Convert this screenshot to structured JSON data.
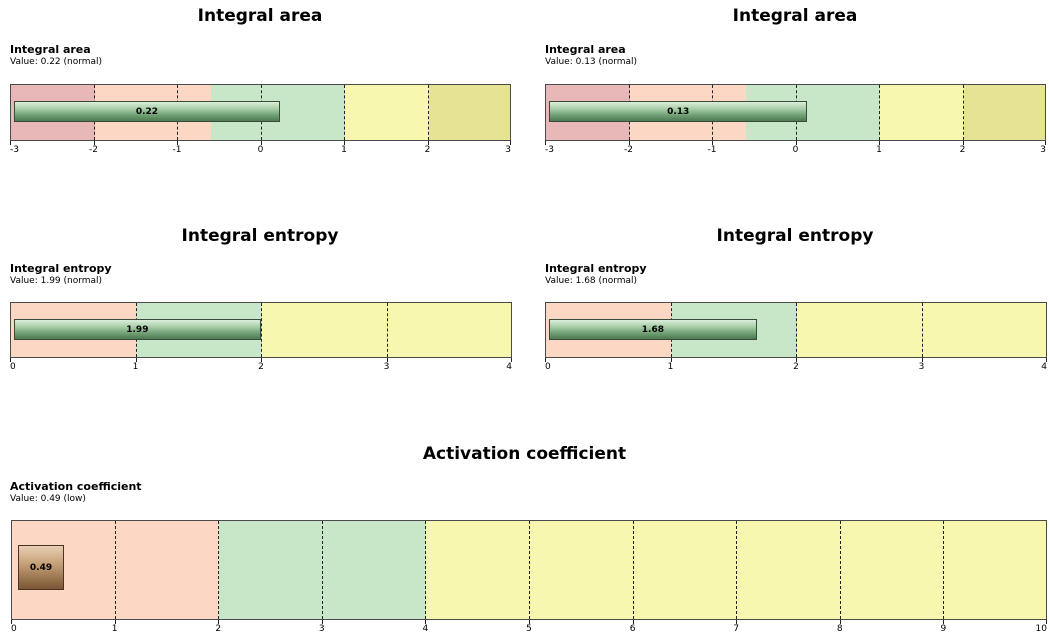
{
  "colors": {
    "zone_red": "#e8b8b8",
    "zone_orange": "#fcd8c4",
    "zone_green": "#c8e6c8",
    "zone_yellow": "#f8f7b0",
    "zone_olive": "#e6e394"
  },
  "gauges": [
    {
      "title": "Integral area",
      "label": "Integral area",
      "subtitle": "Value: 0.22 (normal)",
      "value": 0.22,
      "value_text": "0.22",
      "min": -3,
      "max": 3,
      "ticks": [
        "-3",
        "-2",
        "-1",
        "0",
        "1",
        "2",
        "3"
      ],
      "grid": [
        -2,
        -1,
        0,
        1,
        2
      ],
      "style": "green",
      "zones": [
        {
          "from": -3,
          "to": -2,
          "color": "zone_red"
        },
        {
          "from": -2,
          "to": -0.6,
          "color": "zone_orange"
        },
        {
          "from": -0.6,
          "to": 1,
          "color": "zone_green"
        },
        {
          "from": 1,
          "to": 2,
          "color": "zone_yellow"
        },
        {
          "from": 2,
          "to": 3,
          "color": "zone_olive"
        }
      ]
    },
    {
      "title": "Integral area",
      "label": "Integral area",
      "subtitle": "Value: 0.13 (normal)",
      "value": 0.13,
      "value_text": "0.13",
      "min": -3,
      "max": 3,
      "ticks": [
        "-3",
        "-2",
        "-1",
        "0",
        "1",
        "2",
        "3"
      ],
      "grid": [
        -2,
        -1,
        0,
        1,
        2
      ],
      "style": "green",
      "zones": [
        {
          "from": -3,
          "to": -2,
          "color": "zone_red"
        },
        {
          "from": -2,
          "to": -0.6,
          "color": "zone_orange"
        },
        {
          "from": -0.6,
          "to": 1,
          "color": "zone_green"
        },
        {
          "from": 1,
          "to": 2,
          "color": "zone_yellow"
        },
        {
          "from": 2,
          "to": 3,
          "color": "zone_olive"
        }
      ]
    },
    {
      "title": "Integral entropy",
      "label": "Integral entropy",
      "subtitle": "Value: 1.99 (normal)",
      "value": 1.99,
      "value_text": "1.99",
      "min": 0,
      "max": 4,
      "ticks": [
        "0",
        "1",
        "2",
        "3",
        "4"
      ],
      "grid": [
        1,
        2,
        3
      ],
      "style": "green",
      "zones": [
        {
          "from": 0,
          "to": 1,
          "color": "zone_orange"
        },
        {
          "from": 1,
          "to": 2,
          "color": "zone_green"
        },
        {
          "from": 2,
          "to": 4,
          "color": "zone_yellow"
        }
      ]
    },
    {
      "title": "Integral entropy",
      "label": "Integral entropy",
      "subtitle": "Value: 1.68 (normal)",
      "value": 1.68,
      "value_text": "1.68",
      "min": 0,
      "max": 4,
      "ticks": [
        "0",
        "1",
        "2",
        "3",
        "4"
      ],
      "grid": [
        1,
        2,
        3
      ],
      "style": "green",
      "zones": [
        {
          "from": 0,
          "to": 1,
          "color": "zone_orange"
        },
        {
          "from": 1,
          "to": 2,
          "color": "zone_green"
        },
        {
          "from": 2,
          "to": 4,
          "color": "zone_yellow"
        }
      ]
    },
    {
      "title": "Activation coefficient",
      "label": "Activation coefficient",
      "subtitle": "Value: 0.49 (low)",
      "value": 0.49,
      "value_text": "0.49",
      "min": 0,
      "max": 10,
      "ticks": [
        "0",
        "1",
        "2",
        "3",
        "4",
        "5",
        "6",
        "7",
        "8",
        "9",
        "10"
      ],
      "grid": [
        1,
        2,
        3,
        4,
        5,
        6,
        7,
        8,
        9
      ],
      "style": "brown",
      "zones": [
        {
          "from": 0,
          "to": 2,
          "color": "zone_orange"
        },
        {
          "from": 2,
          "to": 4,
          "color": "zone_green"
        },
        {
          "from": 4,
          "to": 10,
          "color": "zone_yellow"
        }
      ]
    }
  ],
  "chart_data": [
    {
      "type": "bar",
      "title": "Integral area",
      "categories": [
        "Integral area"
      ],
      "values": [
        0.22
      ],
      "xlim": [
        -3,
        3
      ]
    },
    {
      "type": "bar",
      "title": "Integral area",
      "categories": [
        "Integral area"
      ],
      "values": [
        0.13
      ],
      "xlim": [
        -3,
        3
      ]
    },
    {
      "type": "bar",
      "title": "Integral entropy",
      "categories": [
        "Integral entropy"
      ],
      "values": [
        1.99
      ],
      "xlim": [
        0,
        4
      ]
    },
    {
      "type": "bar",
      "title": "Integral entropy",
      "categories": [
        "Integral entropy"
      ],
      "values": [
        1.68
      ],
      "xlim": [
        0,
        4
      ]
    },
    {
      "type": "bar",
      "title": "Activation coefficient",
      "categories": [
        "Activation coefficient"
      ],
      "values": [
        0.49
      ],
      "xlim": [
        0,
        10
      ]
    }
  ]
}
